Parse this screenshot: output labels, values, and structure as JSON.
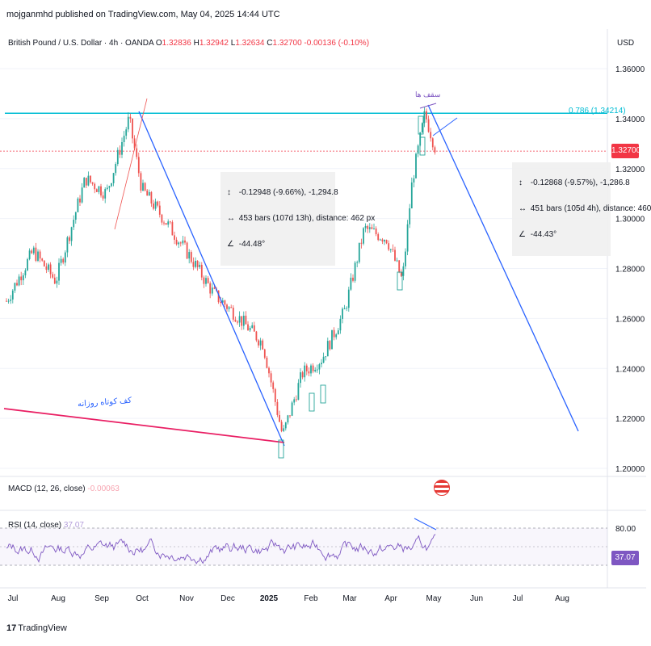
{
  "header": {
    "published": "mojganmhd published on TradingView.com, May 04, 2025 14:44 UTC"
  },
  "symbol": {
    "title": "British Pound / U.S. Dollar · 4h · OANDA",
    "o_label": "O",
    "o": "1.32836",
    "h_label": "H",
    "h": "1.32942",
    "l_label": "L",
    "l": "1.32634",
    "c_label": "C",
    "c": "1.32700",
    "change": "-0.00136 (-0.10%)"
  },
  "currency": "USD",
  "price_axis": [
    "1.36000",
    "1.34000",
    "1.32000",
    "1.30000",
    "1.28000",
    "1.26000",
    "1.24000",
    "1.22000",
    "1.20000"
  ],
  "current_price": "1.32700",
  "fib_label": "0.786 (1.34214)",
  "measure_left": {
    "line1": "-0.12948 (-9.66%), -1,294.8",
    "line2": "453 bars (107d 13h), distance: 462 px",
    "line3": "-44.48°"
  },
  "measure_right": {
    "line1": "-0.12868 (-9.57%), -1,286.8",
    "line2": "451 bars (105d 4h), distance: 460",
    "line3": "-44.43°"
  },
  "annotation_fa": "کف کوتاه روزانه",
  "annotation_fa2": "سقف ها",
  "macd": {
    "label": "MACD (12, 26, close)",
    "value": "-0.00063"
  },
  "rsi": {
    "label": "RSI (14, close)",
    "value": "37.07",
    "level": "80.00",
    "tag": "37.07"
  },
  "time_axis": [
    "Jul",
    "Aug",
    "Sep",
    "Oct",
    "Nov",
    "Dec",
    "2025",
    "Feb",
    "Mar",
    "Apr",
    "May",
    "Jun",
    "Jul",
    "Aug"
  ],
  "footer": "TradingView",
  "colors": {
    "up": "#26a69a",
    "down": "#ef5350",
    "fib": "#00bcd4",
    "trend": "#2962ff",
    "support": "#e91e63",
    "rsi": "#7e57c2",
    "price_tag": "#f23645"
  },
  "chart_data": {
    "type": "line",
    "title": "British Pound / U.S. Dollar · 4h · OANDA",
    "xlabel": "",
    "ylabel": "",
    "x": [
      "2024-07-01",
      "2024-07-20",
      "2024-08-05",
      "2024-08-26",
      "2024-09-10",
      "2024-09-26",
      "2024-10-05",
      "2024-10-23",
      "2024-11-08",
      "2024-11-25",
      "2024-12-10",
      "2024-12-30",
      "2025-01-13",
      "2025-01-27",
      "2025-02-10",
      "2025-02-26",
      "2025-03-12",
      "2025-03-28",
      "2025-04-08",
      "2025-04-15",
      "2025-04-24",
      "2025-05-02"
    ],
    "series": [
      {
        "values": [
          1.267,
          1.287,
          1.275,
          1.316,
          1.31,
          1.34,
          1.312,
          1.298,
          1.285,
          1.27,
          1.262,
          1.25,
          1.213,
          1.238,
          1.244,
          1.263,
          1.296,
          1.292,
          1.275,
          1.315,
          1.342,
          1.327
        ]
      }
    ],
    "ylim": [
      1.2,
      1.365
    ],
    "horizontal_lines": [
      {
        "label": "0.786 (1.34214)",
        "value": 1.34214
      },
      {
        "value": 1.327
      }
    ],
    "rsi_levels": [
      80,
      30
    ],
    "grid": true
  }
}
